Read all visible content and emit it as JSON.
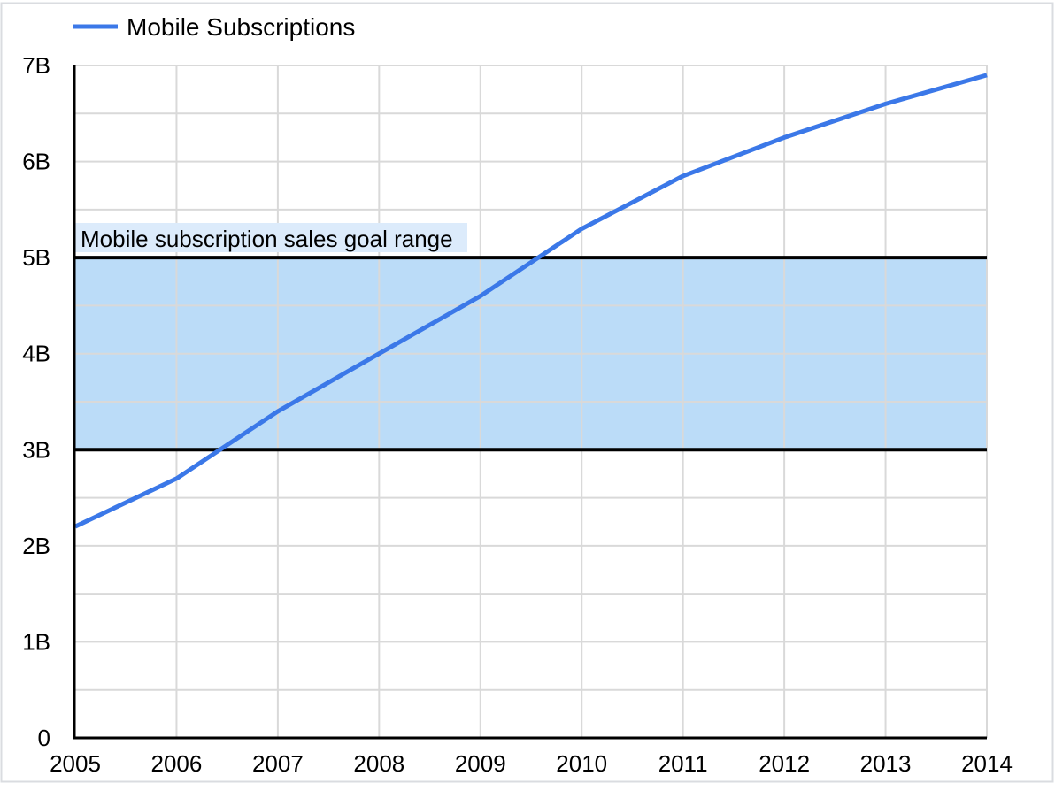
{
  "chart_data": {
    "type": "line",
    "title": "",
    "xlabel": "",
    "ylabel": "",
    "x": [
      2005,
      2006,
      2007,
      2008,
      2009,
      2010,
      2011,
      2012,
      2013,
      2014
    ],
    "xtick_labels": [
      "2005",
      "2006",
      "2007",
      "2008",
      "2009",
      "2010",
      "2011",
      "2012",
      "2013",
      "2014"
    ],
    "series": [
      {
        "name": "Mobile Subscriptions",
        "color": "#3b78e8",
        "values": [
          2.2,
          2.7,
          3.4,
          4.0,
          4.6,
          5.3,
          5.85,
          6.25,
          6.6,
          6.9
        ]
      }
    ],
    "ylim": [
      0,
      7
    ],
    "ytick_labels": [
      "0",
      "1B",
      "2B",
      "3B",
      "4B",
      "5B",
      "6B",
      "7B"
    ],
    "y_minor_step": 0.5,
    "grid": "on",
    "legend_position": "top-left",
    "annotation_band": {
      "from": 3,
      "to": 5,
      "label": "Mobile subscription sales goal range",
      "fill": "#bbdcf8",
      "label_bg": "#dcebfb",
      "border_color": "#000000"
    },
    "colors": {
      "gridline": "#d9d9d9",
      "axis": "#000000",
      "text": "#000000",
      "background": "#ffffff",
      "chart_border": "#dadce0"
    }
  }
}
